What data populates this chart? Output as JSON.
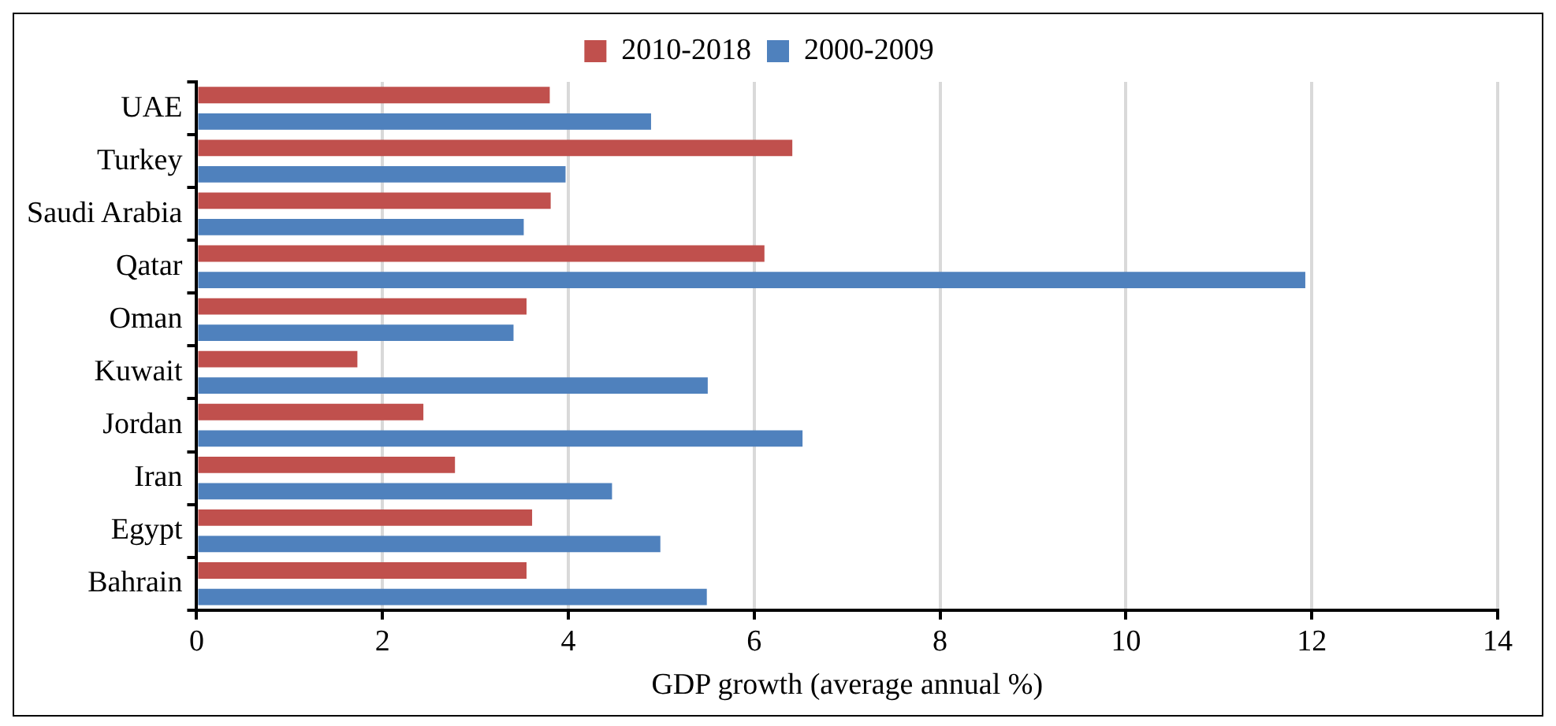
{
  "chart_data": {
    "type": "bar",
    "orientation": "horizontal",
    "xlabel": "GDP growth (average annual %)",
    "categories": [
      "UAE",
      "Turkey",
      "Saudi Arabia",
      "Qatar",
      "Oman",
      "Kuwait",
      "Jordan",
      "Iran",
      "Egypt",
      "Bahrain"
    ],
    "series": [
      {
        "name": "2010-2018",
        "color": "#c0504d",
        "values": [
          3.8,
          6.41,
          3.81,
          6.11,
          3.55,
          1.73,
          2.44,
          2.78,
          3.61,
          3.55
        ]
      },
      {
        "name": "2000-2009",
        "color": "#4f81bd",
        "values": [
          4.89,
          3.97,
          3.52,
          11.93,
          3.41,
          5.5,
          6.52,
          4.47,
          4.99,
          5.49
        ]
      }
    ],
    "xlim": [
      0,
      14
    ],
    "xticks": [
      0,
      2,
      4,
      6,
      8,
      10,
      12,
      14
    ],
    "grid": "x",
    "legend": "top"
  }
}
